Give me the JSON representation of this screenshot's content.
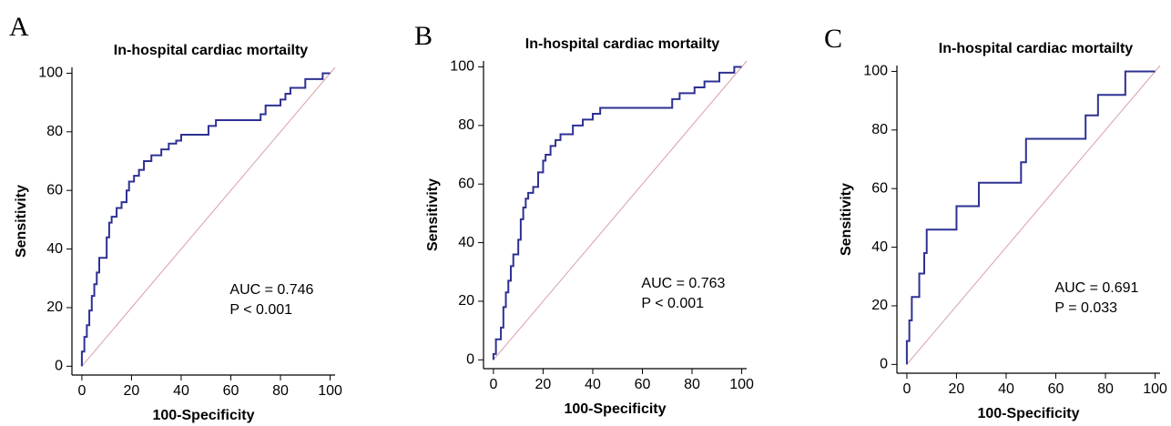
{
  "chart_data": [
    {
      "type": "line",
      "panel_label": "A",
      "title": "In-hospital cardiac mortailty",
      "xlabel": "100-Specificity",
      "ylabel": "Sensitivity",
      "x": [
        0,
        0,
        1,
        1,
        2,
        2,
        3,
        3,
        4,
        4,
        5,
        5,
        6,
        6,
        7,
        7,
        10,
        10,
        11,
        11,
        12,
        12,
        14,
        14,
        16,
        16,
        18,
        18,
        19,
        19,
        21,
        21,
        23,
        23,
        25,
        25,
        28,
        28,
        32,
        32,
        35,
        35,
        38,
        38,
        40,
        40,
        51,
        51,
        54,
        54,
        72,
        72,
        74,
        74,
        80,
        80,
        82,
        82,
        84,
        84,
        90,
        90,
        97,
        97,
        100
      ],
      "values": [
        0,
        5,
        5,
        10,
        10,
        14,
        14,
        19,
        19,
        24,
        24,
        28,
        28,
        32,
        32,
        37,
        37,
        44,
        44,
        49,
        49,
        51,
        51,
        54,
        54,
        56,
        56,
        60,
        60,
        63,
        63,
        65,
        65,
        67,
        67,
        70,
        70,
        72,
        72,
        74,
        74,
        76,
        76,
        77,
        77,
        79,
        79,
        82,
        82,
        84,
        84,
        86,
        86,
        89,
        89,
        91,
        91,
        93,
        93,
        95,
        95,
        98,
        98,
        100,
        100
      ],
      "color": "#2e3192",
      "reference_color": "#d8a0aa",
      "annotations": [
        "AUC = 0.746",
        "P < 0.001"
      ],
      "xlim": [
        -4,
        102
      ],
      "ylim": [
        -3,
        102
      ],
      "xticks": [
        0,
        20,
        40,
        60,
        80,
        100
      ],
      "yticks": [
        0,
        20,
        40,
        60,
        80,
        100
      ]
    },
    {
      "type": "line",
      "panel_label": "B",
      "title": "In-hospital cardiac mortailty",
      "xlabel": "100-Specificity",
      "ylabel": "Sensitivity",
      "x": [
        0,
        0,
        1,
        1,
        3,
        3,
        4,
        4,
        5,
        5,
        6,
        6,
        7,
        7,
        8,
        8,
        10,
        10,
        11,
        11,
        12,
        12,
        13,
        13,
        14,
        14,
        16,
        16,
        18,
        18,
        20,
        20,
        21,
        21,
        23,
        23,
        25,
        25,
        27,
        27,
        32,
        32,
        36,
        36,
        40,
        40,
        43,
        43,
        72,
        72,
        75,
        75,
        81,
        81,
        85,
        85,
        91,
        91,
        97,
        97,
        100
      ],
      "values": [
        0,
        2,
        2,
        7,
        7,
        11,
        11,
        18,
        18,
        23,
        23,
        27,
        27,
        32,
        32,
        36,
        36,
        41,
        41,
        48,
        48,
        52,
        52,
        55,
        55,
        57,
        57,
        59,
        59,
        64,
        64,
        68,
        68,
        70,
        70,
        73,
        73,
        75,
        75,
        77,
        77,
        80,
        80,
        82,
        82,
        84,
        84,
        86,
        86,
        89,
        89,
        91,
        91,
        93,
        93,
        95,
        95,
        98,
        98,
        100,
        100
      ],
      "color": "#2e3192",
      "reference_color": "#d8a0aa",
      "annotations": [
        "AUC = 0.763",
        "P < 0.001"
      ],
      "xlim": [
        -4,
        102
      ],
      "ylim": [
        -3,
        102
      ],
      "xticks": [
        0,
        20,
        40,
        60,
        80,
        100
      ],
      "yticks": [
        0,
        20,
        40,
        60,
        80,
        100
      ]
    },
    {
      "type": "line",
      "panel_label": "C",
      "title": "In-hospital cardiac mortailty",
      "xlabel": "100-Specificity",
      "ylabel": "Sensitivity",
      "x": [
        0,
        0,
        1,
        1,
        2,
        2,
        5,
        5,
        7,
        7,
        8,
        8,
        20,
        20,
        29,
        29,
        46,
        46,
        48,
        48,
        72,
        72,
        77,
        77,
        88,
        88,
        100
      ],
      "values": [
        0,
        8,
        8,
        15,
        15,
        23,
        23,
        31,
        31,
        38,
        38,
        46,
        46,
        54,
        54,
        62,
        62,
        69,
        69,
        77,
        77,
        85,
        85,
        92,
        92,
        100,
        100
      ],
      "color": "#2e3192",
      "reference_color": "#d8a0aa",
      "annotations": [
        "AUC = 0.691",
        "P = 0.033"
      ],
      "xlim": [
        -4,
        102
      ],
      "ylim": [
        -3,
        102
      ],
      "xticks": [
        0,
        20,
        40,
        60,
        80,
        100
      ],
      "yticks": [
        0,
        20,
        40,
        60,
        80,
        100
      ]
    }
  ]
}
